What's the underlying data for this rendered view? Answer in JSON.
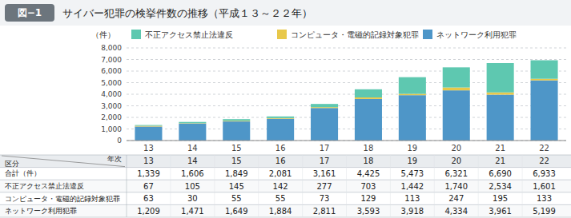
{
  "chart_data": {
    "type": "bar",
    "stacked": true,
    "grid": true,
    "legend": "top",
    "title": "図−1",
    "subtitle": "サイバー犯罪の検挙件数の推移（平成１３～２２年）",
    "y_label": "（件）",
    "categories": [
      "13",
      "14",
      "15",
      "16",
      "17",
      "18",
      "19",
      "20",
      "21",
      "22"
    ],
    "series": [
      {
        "name": "ネットワーク利用犯罪",
        "color": "#4e96c8",
        "values": [
          1209,
          1471,
          1649,
          1884,
          2811,
          3593,
          3918,
          4334,
          3961,
          5199
        ]
      },
      {
        "name": "コンピュータ・電磁的記録対象犯罪",
        "color": "#e8c84a",
        "values": [
          63,
          30,
          55,
          55,
          73,
          129,
          113,
          247,
          195,
          133
        ]
      },
      {
        "name": "不正アクセス禁止法違反",
        "color": "#5ec8b0",
        "values": [
          67,
          105,
          145,
          142,
          277,
          703,
          1442,
          1740,
          2534,
          1601
        ]
      }
    ],
    "ylim": [
      0,
      8000
    ],
    "yticks": [
      0,
      {
        "value": 1000,
        "label": "1,000"
      },
      {
        "value": 2000,
        "label": "2,000"
      },
      {
        "value": 3000,
        "label": "3,000"
      },
      {
        "value": 4000,
        "label": "4,000"
      },
      {
        "value": 5000,
        "label": "5,000"
      },
      {
        "value": 6000,
        "label": "6,000"
      },
      {
        "value": 7000,
        "label": "7,000"
      },
      {
        "value": 8000,
        "label": "8,000"
      }
    ],
    "table": {
      "row_header": "区分",
      "column_header": "年次",
      "rows": [
        {
          "label": "合計（件）",
          "cells": [
            "1,339",
            "1,606",
            "1,849",
            "2,081",
            "3,161",
            "4,425",
            "5,473",
            "6,321",
            "6,690",
            "6,933"
          ]
        },
        {
          "label": "不正アクセス禁止法違反",
          "cells": [
            "67",
            "105",
            "145",
            "142",
            "277",
            "703",
            "1,442",
            "1,740",
            "2,534",
            "1,601"
          ]
        },
        {
          "label": "コンピュータ・電磁的記録対象犯罪",
          "cells": [
            "63",
            "30",
            "55",
            "55",
            "73",
            "129",
            "113",
            "247",
            "195",
            "133"
          ]
        },
        {
          "label": "ネットワーク利用犯罪",
          "cells": [
            "1,209",
            "1,471",
            "1,649",
            "1,884",
            "2,811",
            "3,593",
            "3,918",
            "4,334",
            "3,961",
            "5,199"
          ]
        }
      ]
    }
  }
}
